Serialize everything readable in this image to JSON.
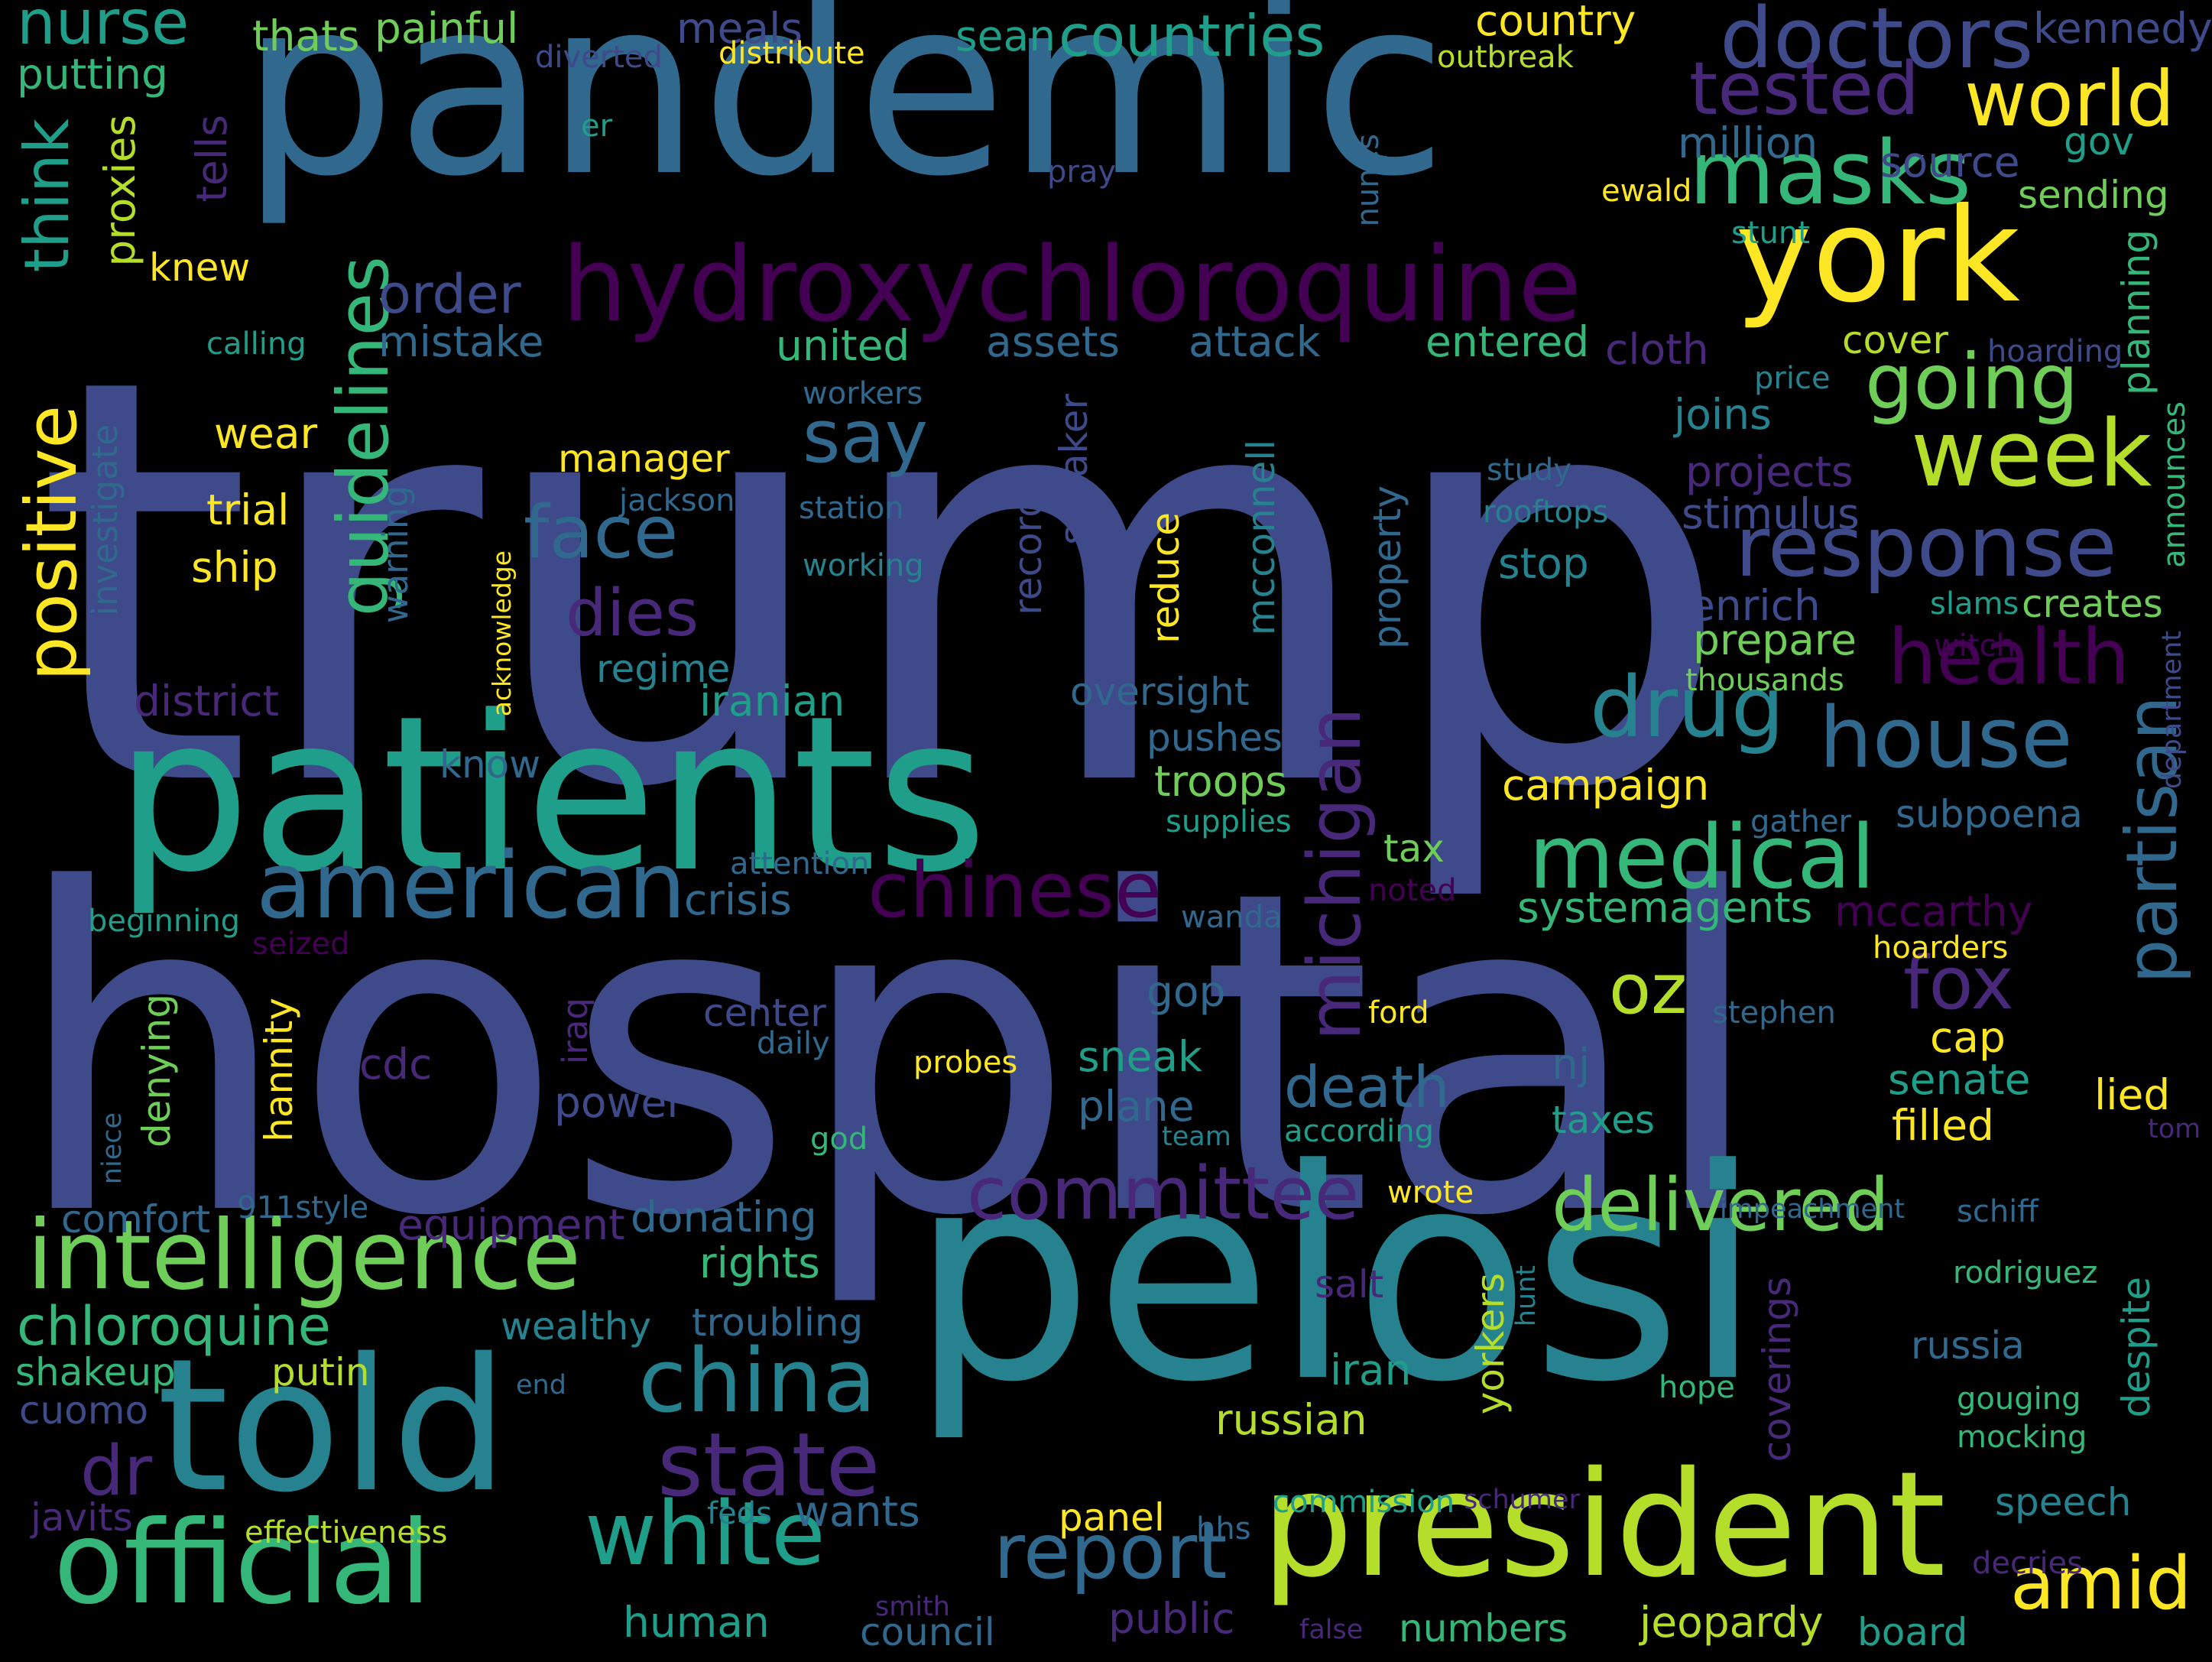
{
  "cloud": {
    "background": "#000000",
    "palette": {
      "v0": "#440154",
      "v1": "#482878",
      "v2": "#3e4a89",
      "v3": "#31688e",
      "v4": "#26828e",
      "v5": "#1f9e89",
      "v6": "#35b779",
      "v7": "#6ece58",
      "v8": "#b5de2b",
      "v9": "#fde725",
      "dv": "#4d2a6b",
      "md": "#5b4a8a",
      "dg": "#2f7f86",
      "lb": "#3a8d99"
    },
    "words": [
      {
        "w": "trump",
        "c": "v2"
      },
      {
        "w": "hospital",
        "c": "v2"
      },
      {
        "w": "pandemic",
        "c": "v3"
      },
      {
        "w": "pelosi",
        "c": "v4"
      },
      {
        "w": "patients",
        "c": "v5"
      },
      {
        "w": "president",
        "c": "v8"
      },
      {
        "w": "told",
        "c": "v4"
      },
      {
        "w": "york",
        "c": "v9"
      },
      {
        "w": "hydroxychloroquine",
        "c": "v0"
      },
      {
        "w": "official",
        "c": "v6"
      },
      {
        "w": "american",
        "c": "v3"
      },
      {
        "w": "intelligence",
        "c": "v7"
      },
      {
        "w": "masks",
        "c": "v6"
      },
      {
        "w": "doctors",
        "c": "v2"
      },
      {
        "w": "medical",
        "c": "v6"
      },
      {
        "w": "response",
        "c": "v2"
      },
      {
        "w": "drug",
        "c": "v4"
      },
      {
        "w": "house",
        "c": "v3"
      },
      {
        "w": "white",
        "c": "v5"
      },
      {
        "w": "china",
        "c": "v4"
      },
      {
        "w": "state",
        "c": "v1"
      },
      {
        "w": "chinese",
        "c": "v0"
      },
      {
        "w": "committee",
        "c": "v1"
      },
      {
        "w": "delivered",
        "c": "v7"
      },
      {
        "w": "week",
        "c": "v8"
      },
      {
        "w": "world",
        "c": "v9"
      },
      {
        "w": "tested",
        "c": "v1"
      },
      {
        "w": "health",
        "c": "v0"
      },
      {
        "w": "report",
        "c": "v3"
      },
      {
        "w": "amid",
        "c": "v9"
      },
      {
        "w": "positive",
        "c": "v9"
      },
      {
        "w": "guidelines",
        "c": "v6"
      },
      {
        "w": "michigan",
        "c": "v1"
      },
      {
        "w": "partisan",
        "c": "v3"
      },
      {
        "w": "face",
        "c": "v3"
      },
      {
        "w": "say",
        "c": "v3"
      },
      {
        "w": "going",
        "c": "v7"
      },
      {
        "w": "nurse",
        "c": "v5"
      },
      {
        "w": "think",
        "c": "v5"
      },
      {
        "w": "countries",
        "c": "v5"
      },
      {
        "w": "dies",
        "c": "v1"
      },
      {
        "w": "chloroquine",
        "c": "v6"
      },
      {
        "w": "oz",
        "c": "v8"
      },
      {
        "w": "fox",
        "c": "v1"
      },
      {
        "w": "dr",
        "c": "v1"
      },
      {
        "w": "death",
        "c": "v3"
      },
      {
        "w": "country",
        "c": "v9"
      },
      {
        "w": "kennedy",
        "c": "v2"
      },
      {
        "w": "meals",
        "c": "v2"
      },
      {
        "w": "sean",
        "c": "v5"
      },
      {
        "w": "painful",
        "c": "v7"
      },
      {
        "w": "thats",
        "c": "v7"
      },
      {
        "w": "putting",
        "c": "v6"
      },
      {
        "w": "diverted",
        "c": "v2"
      },
      {
        "w": "distribute",
        "c": "v9"
      },
      {
        "w": "outbreak",
        "c": "v8"
      },
      {
        "w": "er",
        "c": "v5"
      },
      {
        "w": "pray",
        "c": "v2"
      },
      {
        "w": "proxies",
        "c": "v8"
      },
      {
        "w": "tells",
        "c": "v1"
      },
      {
        "w": "knew",
        "c": "v9"
      },
      {
        "w": "order",
        "c": "v2"
      },
      {
        "w": "mistake",
        "c": "v3"
      },
      {
        "w": "calling",
        "c": "v5"
      },
      {
        "w": "united",
        "c": "v6"
      },
      {
        "w": "assets",
        "c": "v3"
      },
      {
        "w": "attack",
        "c": "v3"
      },
      {
        "w": "entered",
        "c": "v6"
      },
      {
        "w": "cloth",
        "c": "v1"
      },
      {
        "w": "cover",
        "c": "v8"
      },
      {
        "w": "hoarding",
        "c": "v2"
      },
      {
        "w": "price",
        "c": "v4"
      },
      {
        "w": "planning",
        "c": "v6"
      },
      {
        "w": "announces",
        "c": "v6"
      },
      {
        "w": "million",
        "c": "v3"
      },
      {
        "w": "source",
        "c": "v2"
      },
      {
        "w": "gov",
        "c": "v5"
      },
      {
        "w": "sending",
        "c": "v7"
      },
      {
        "w": "ewald",
        "c": "v9"
      },
      {
        "w": "stunt",
        "c": "v5"
      },
      {
        "w": "nunes",
        "c": "v3"
      },
      {
        "w": "workers",
        "c": "v3"
      },
      {
        "w": "manager",
        "c": "v9"
      },
      {
        "w": "wear",
        "c": "v9"
      },
      {
        "w": "trial",
        "c": "v9"
      },
      {
        "w": "ship",
        "c": "v9"
      },
      {
        "w": "investigate",
        "c": "v3"
      },
      {
        "w": "warning",
        "c": "v3"
      },
      {
        "w": "jackson",
        "c": "v3"
      },
      {
        "w": "station",
        "c": "v3"
      },
      {
        "w": "working",
        "c": "v4"
      },
      {
        "w": "acknowledge",
        "c": "v9"
      },
      {
        "w": "regime",
        "c": "v4"
      },
      {
        "w": "iranian",
        "c": "v5"
      },
      {
        "w": "district",
        "c": "v1"
      },
      {
        "w": "record",
        "c": "v2"
      },
      {
        "w": "speaker",
        "c": "v2"
      },
      {
        "w": "reduce",
        "c": "v9"
      },
      {
        "w": "mcconnell",
        "c": "v4"
      },
      {
        "w": "property",
        "c": "v3"
      },
      {
        "w": "oversight",
        "c": "v3"
      },
      {
        "w": "pushes",
        "c": "v3"
      },
      {
        "w": "troops",
        "c": "v7"
      },
      {
        "w": "know",
        "c": "v3"
      },
      {
        "w": "campaign",
        "c": "v9"
      },
      {
        "w": "supplies",
        "c": "v5"
      },
      {
        "w": "study",
        "c": "v3"
      },
      {
        "w": "rooftops",
        "c": "v4"
      },
      {
        "w": "stop",
        "c": "v4"
      },
      {
        "w": "joins",
        "c": "v4"
      },
      {
        "w": "projects",
        "c": "v1"
      },
      {
        "w": "stimulus",
        "c": "v2"
      },
      {
        "w": "enrich",
        "c": "v2"
      },
      {
        "w": "prepare",
        "c": "v7"
      },
      {
        "w": "thousands",
        "c": "v7"
      },
      {
        "w": "slams",
        "c": "v5"
      },
      {
        "w": "creates",
        "c": "v7"
      },
      {
        "w": "witch",
        "c": "v0"
      },
      {
        "w": "department",
        "c": "v2"
      },
      {
        "w": "gather",
        "c": "v3"
      },
      {
        "w": "subpoena",
        "c": "v3"
      },
      {
        "w": "tax",
        "c": "v7"
      },
      {
        "w": "noted",
        "c": "v0"
      },
      {
        "w": "attention",
        "c": "v3"
      },
      {
        "w": "crisis",
        "c": "v3"
      },
      {
        "w": "beginning",
        "c": "v5"
      },
      {
        "w": "seized",
        "c": "v0"
      },
      {
        "w": "systemagents",
        "c": "v6"
      },
      {
        "w": "mccarthy",
        "c": "v0"
      },
      {
        "w": "hoarders",
        "c": "v9"
      },
      {
        "w": "wanda",
        "c": "v3"
      },
      {
        "w": "gop",
        "c": "v3"
      },
      {
        "w": "hannity",
        "c": "v9"
      },
      {
        "w": "denying",
        "c": "v7"
      },
      {
        "w": "center",
        "c": "v2"
      },
      {
        "w": "iraq",
        "c": "v1"
      },
      {
        "w": "daily",
        "c": "v3"
      },
      {
        "w": "cdc",
        "c": "v1"
      },
      {
        "w": "ford",
        "c": "v9"
      },
      {
        "w": "probes",
        "c": "v9"
      },
      {
        "w": "stephen",
        "c": "v3"
      },
      {
        "w": "sneak",
        "c": "v5"
      },
      {
        "w": "cap",
        "c": "v9"
      },
      {
        "w": "nj",
        "c": "v3"
      },
      {
        "w": "senate",
        "c": "v5"
      },
      {
        "w": "lied",
        "c": "v9"
      },
      {
        "w": "filled",
        "c": "v9"
      },
      {
        "w": "taxes",
        "c": "v5"
      },
      {
        "w": "tom",
        "c": "v1"
      },
      {
        "w": "power",
        "c": "v2"
      },
      {
        "w": "plane",
        "c": "v3"
      },
      {
        "w": "according",
        "c": "v5"
      },
      {
        "w": "team",
        "c": "v4"
      },
      {
        "w": "god",
        "c": "v6"
      },
      {
        "w": "niece",
        "c": "v3"
      },
      {
        "w": "comfort",
        "c": "v3"
      },
      {
        "w": "911style",
        "c": "v3"
      },
      {
        "w": "equipment",
        "c": "v1"
      },
      {
        "w": "donating",
        "c": "v3"
      },
      {
        "w": "wrote",
        "c": "v9"
      },
      {
        "w": "impeachment",
        "c": "v3"
      },
      {
        "w": "schiff",
        "c": "v3"
      },
      {
        "w": "rights",
        "c": "v6"
      },
      {
        "w": "salt",
        "c": "v1"
      },
      {
        "w": "rodriguez",
        "c": "v6"
      },
      {
        "w": "hunt",
        "c": "v4"
      },
      {
        "w": "wealthy",
        "c": "v4"
      },
      {
        "w": "troubling",
        "c": "v3"
      },
      {
        "w": "yorkers",
        "c": "v8"
      },
      {
        "w": "coverings",
        "c": "v1"
      },
      {
        "w": "despite",
        "c": "v5"
      },
      {
        "w": "iran",
        "c": "v5"
      },
      {
        "w": "russia",
        "c": "v3"
      },
      {
        "w": "shakeup",
        "c": "v6"
      },
      {
        "w": "putin",
        "c": "v8"
      },
      {
        "w": "end",
        "c": "v3"
      },
      {
        "w": "hope",
        "c": "v6"
      },
      {
        "w": "gouging",
        "c": "v6"
      },
      {
        "w": "cuomo",
        "c": "v2"
      },
      {
        "w": "russian",
        "c": "v8"
      },
      {
        "w": "mocking",
        "c": "v6"
      },
      {
        "w": "javits",
        "c": "v1"
      },
      {
        "w": "feds",
        "c": "v4"
      },
      {
        "w": "wants",
        "c": "v3"
      },
      {
        "w": "commission",
        "c": "v5"
      },
      {
        "w": "schumer",
        "c": "v1"
      },
      {
        "w": "speech",
        "c": "v4"
      },
      {
        "w": "effectiveness",
        "c": "v8"
      },
      {
        "w": "panel",
        "c": "v9"
      },
      {
        "w": "hhs",
        "c": "v3"
      },
      {
        "w": "decries",
        "c": "v1"
      },
      {
        "w": "smith",
        "c": "v1"
      },
      {
        "w": "false",
        "c": "v1"
      },
      {
        "w": "human",
        "c": "v5"
      },
      {
        "w": "council",
        "c": "v3"
      },
      {
        "w": "public",
        "c": "v1"
      },
      {
        "w": "numbers",
        "c": "v6"
      },
      {
        "w": "jeopardy",
        "c": "v8"
      },
      {
        "w": "board",
        "c": "v5"
      }
    ]
  }
}
